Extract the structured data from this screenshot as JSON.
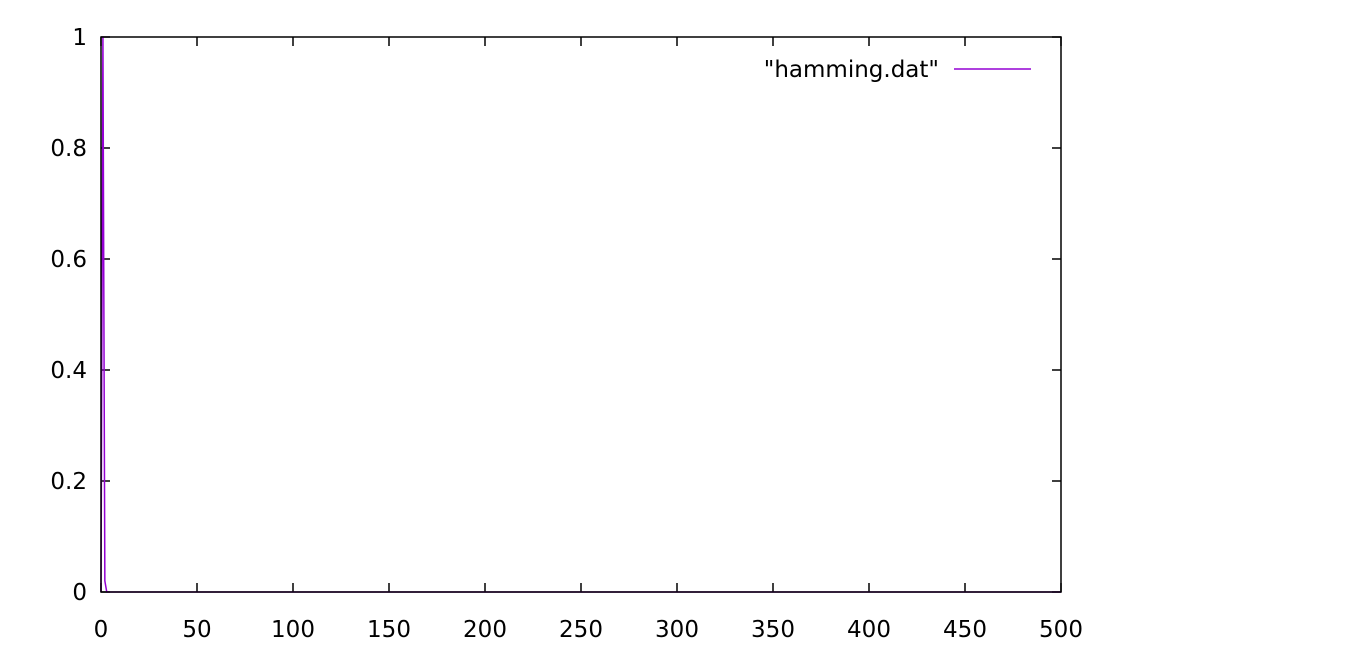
{
  "chart_data": {
    "type": "line",
    "title": "",
    "xlabel": "",
    "ylabel": "",
    "xlim": [
      0,
      500
    ],
    "ylim": [
      0,
      1
    ],
    "x_ticks": [
      "0",
      "50",
      "100",
      "150",
      "200",
      "250",
      "300",
      "350",
      "400",
      "450",
      "500"
    ],
    "y_ticks": [
      "0",
      "0.2",
      "0.4",
      "0.6",
      "0.8",
      "1"
    ],
    "grid": false,
    "legend_position": "top-right",
    "series": [
      {
        "name": "\"hamming.dat\"",
        "color": "#9400d3",
        "x": [
          0,
          1,
          2,
          3,
          10,
          50,
          100,
          150,
          200,
          250,
          300,
          350,
          400,
          450,
          500
        ],
        "y": [
          0,
          1,
          0.02,
          0,
          0,
          0,
          0,
          0,
          0,
          0,
          0,
          0,
          0,
          0,
          0
        ]
      }
    ]
  }
}
